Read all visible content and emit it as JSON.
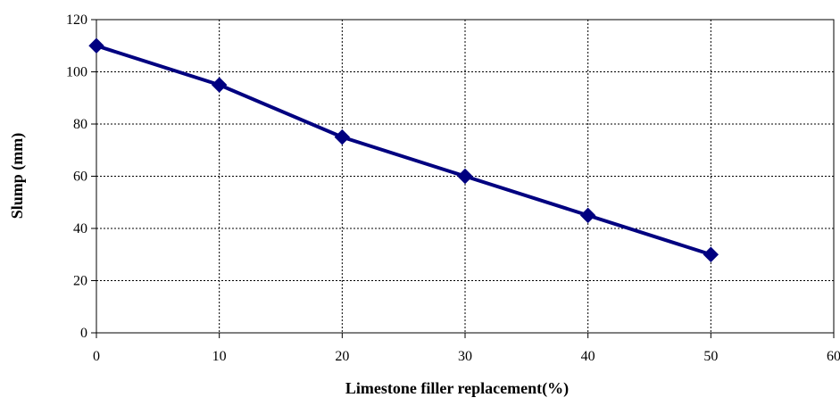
{
  "chart_data": {
    "type": "line",
    "title": "",
    "xlabel": "Limestone filler replacement(%)",
    "ylabel": "Slump (mm)",
    "xlim": [
      0,
      60
    ],
    "ylim": [
      0,
      120
    ],
    "x_ticks": [
      0,
      10,
      20,
      30,
      40,
      50,
      60
    ],
    "y_ticks": [
      0,
      20,
      40,
      60,
      80,
      100,
      120
    ],
    "grid": true,
    "grid_style": "dotted",
    "legend": "none",
    "series": [
      {
        "x": [
          0,
          10,
          20,
          30,
          40,
          50
        ],
        "y": [
          110,
          95,
          75,
          60,
          45,
          30
        ],
        "color": "#000080",
        "marker": "diamond"
      }
    ]
  }
}
